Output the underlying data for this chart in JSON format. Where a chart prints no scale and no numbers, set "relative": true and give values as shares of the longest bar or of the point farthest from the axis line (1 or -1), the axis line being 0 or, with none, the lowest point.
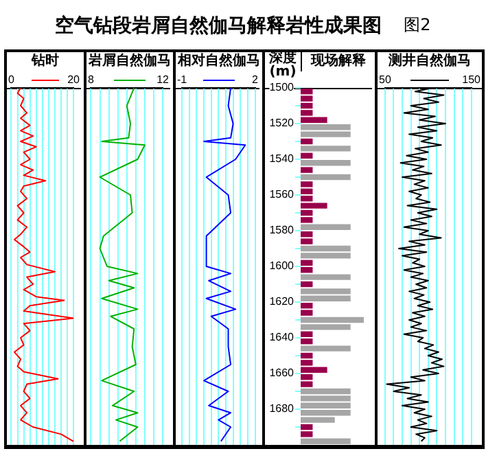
{
  "chart_data": [
    {
      "type": "line",
      "title": "钻时",
      "annotations": [
        "空气钻段岩屑自然伽马解释岩性成果图",
        "图2"
      ],
      "xlim": [
        0,
        20
      ],
      "xticks": [
        0,
        {
          "value": 2,
          "label": null
        },
        {
          "value": 4,
          "label": null
        },
        {
          "value": 6,
          "label": null
        },
        {
          "value": 8,
          "label": null
        },
        {
          "value": 10,
          "label": null
        },
        {
          "value": 12,
          "label": null
        },
        {
          "value": 14,
          "label": null
        },
        {
          "value": 16,
          "label": null
        },
        {
          "value": 18,
          "label": null
        },
        20
      ],
      "ylim": [
        1700,
        1500
      ],
      "tick_labels": "x",
      "grid": "x",
      "series": [
        {
          "color": "#ff0000",
          "x": [
            3,
            2,
            4,
            3,
            5,
            3,
            6,
            3,
            7,
            3,
            8,
            4,
            6,
            3,
            7,
            4,
            11,
            4,
            3,
            5,
            2,
            4,
            2,
            5,
            3,
            1,
            4,
            6,
            3,
            5,
            14,
            5,
            7,
            4,
            8,
            17,
            6,
            4,
            20,
            4,
            6,
            3,
            4,
            1,
            3,
            2,
            4,
            15,
            5,
            4,
            6,
            3,
            5,
            3,
            7,
            16,
            20
          ],
          "values": [
            1500,
            1503,
            1506,
            1510,
            1514,
            1517,
            1521,
            1524,
            1527,
            1530,
            1533,
            1536,
            1540,
            1543,
            1546,
            1549,
            1552,
            1555,
            1558,
            1562,
            1566,
            1570,
            1574,
            1578,
            1582,
            1585,
            1589,
            1592,
            1595,
            1599,
            1603,
            1606,
            1610,
            1613,
            1617,
            1619,
            1622,
            1625,
            1629,
            1632,
            1636,
            1640,
            1644,
            1648,
            1652,
            1656,
            1659,
            1663,
            1666,
            1670,
            1674,
            1678,
            1682,
            1686,
            1690,
            1694,
            1698
          ]
        }
      ]
    },
    {
      "type": "line",
      "title": "岩屑自然伽马",
      "xlim": [
        8,
        12
      ],
      "xticks": [
        8,
        {
          "value": 8.5,
          "label": null
        },
        {
          "value": 9,
          "label": null
        },
        {
          "value": 9.5,
          "label": null
        },
        {
          "value": 10,
          "label": null
        },
        {
          "value": 10.5,
          "label": null
        },
        {
          "value": 11,
          "label": null
        },
        {
          "value": 11.5,
          "label": null
        },
        12
      ],
      "ylim": [
        1700,
        1500
      ],
      "tick_labels": "x",
      "grid": "x",
      "series": [
        {
          "color": "#00b000",
          "x": [
            10.4,
            10,
            10.2,
            10.1,
            8.6,
            11,
            10.6,
            8.5,
            10.2,
            10.3,
            8.7,
            8.5,
            8.9,
            10.6,
            9,
            10.4,
            8.6,
            10.6,
            9.1,
            10.4,
            10.3,
            10.5,
            8.6,
            10.4,
            9.2,
            10.6,
            9.4,
            10.6,
            9.6
          ],
          "values": [
            1500,
            1510,
            1520,
            1528,
            1530,
            1532,
            1540,
            1550,
            1560,
            1570,
            1583,
            1590,
            1600,
            1604,
            1608,
            1612,
            1618,
            1624,
            1628,
            1635,
            1645,
            1655,
            1664,
            1670,
            1678,
            1682,
            1686,
            1690,
            1698
          ]
        }
      ]
    },
    {
      "type": "line",
      "title": "相对自然伽马",
      "xlim": [
        -1,
        2
      ],
      "xticks": [
        -1,
        {
          "value": -0.7,
          "label": null
        },
        {
          "value": -0.4,
          "label": null
        },
        {
          "value": -0.1,
          "label": null
        },
        {
          "value": 0.2,
          "label": null
        },
        {
          "value": 0.5,
          "label": null
        },
        {
          "value": 0.8,
          "label": null
        },
        {
          "value": 1.1,
          "label": null
        },
        {
          "value": 1.4,
          "label": null
        },
        {
          "value": 1.7,
          "label": null
        },
        2
      ],
      "ylim": [
        1700,
        1500
      ],
      "tick_labels": "x",
      "grid": "x",
      "series": [
        {
          "color": "#0000ff",
          "x": [
            1,
            0.9,
            1.1,
            1,
            -0.1,
            1.6,
            1.2,
            0,
            0.9,
            1,
            0,
            0,
            1,
            0.1,
            1,
            0,
            1.2,
            0.2,
            0.9,
            0.9,
            1,
            -0.1,
            0.9,
            0.1,
            1,
            0.5,
            1,
            0.6
          ],
          "values": [
            1500,
            1510,
            1520,
            1528,
            1530,
            1532,
            1540,
            1550,
            1560,
            1570,
            1583,
            1600,
            1604,
            1608,
            1614,
            1618,
            1624,
            1628,
            1635,
            1645,
            1655,
            1664,
            1670,
            1678,
            1682,
            1686,
            1690,
            1698
          ]
        }
      ]
    },
    {
      "type": "bar",
      "orientation": "horizontal",
      "relative": true,
      "title": "现场解释",
      "ylabel": "深度(m)",
      "ylim": [
        1700,
        1500
      ],
      "yticks": [
        1500,
        {
          "value": 1510,
          "label": null
        },
        1520,
        {
          "value": 1530,
          "label": null
        },
        1540,
        {
          "value": 1550,
          "label": null
        },
        1560,
        {
          "value": 1570,
          "label": null
        },
        1580,
        {
          "value": 1590,
          "label": null
        },
        1600,
        {
          "value": 1610,
          "label": null
        },
        1620,
        {
          "value": 1630,
          "label": null
        },
        1640,
        {
          "value": 1650,
          "label": null
        },
        1660,
        {
          "value": 1670,
          "label": null
        },
        1680,
        {
          "value": 1690,
          "label": null
        }
      ],
      "tick_labels": "y",
      "x": [
        1502,
        1506,
        1510,
        1514,
        1518,
        1522,
        1526,
        1530,
        1534,
        1538,
        1542,
        1546,
        1550,
        1554,
        1558,
        1562,
        1566,
        1570,
        1574,
        1578,
        1582,
        1586,
        1590,
        1594,
        1598,
        1602,
        1606,
        1610,
        1614,
        1618,
        1622,
        1626,
        1630,
        1634,
        1638,
        1642,
        1646,
        1650,
        1654,
        1658,
        1662,
        1666,
        1670,
        1674,
        1678,
        1682,
        1686,
        1690,
        1694,
        1698
      ],
      "values": [
        0.19,
        0.19,
        0.19,
        0.19,
        0.42,
        0.79,
        0.79,
        0.19,
        0.79,
        0.19,
        0.79,
        0.19,
        0.79,
        0.19,
        0.19,
        0.19,
        0.42,
        0.19,
        0.19,
        0.79,
        0.19,
        0.19,
        0.79,
        0.79,
        0.19,
        0.19,
        0.79,
        0.19,
        0.79,
        0.79,
        0.19,
        0.19,
        1,
        0.79,
        0.19,
        0.19,
        0.79,
        0.19,
        0.19,
        0.42,
        0.19,
        0.19,
        0.79,
        0.79,
        0.79,
        0.79,
        0.54,
        0.19,
        0.19,
        0.79
      ],
      "colors": [
        "#99004c",
        "#99004c",
        "#99004c",
        "#99004c",
        "#99004c",
        "#a6a6a6",
        "#a6a6a6",
        "#99004c",
        "#a6a6a6",
        "#99004c",
        "#a6a6a6",
        "#99004c",
        "#a6a6a6",
        "#99004c",
        "#99004c",
        "#99004c",
        "#99004c",
        "#99004c",
        "#99004c",
        "#a6a6a6",
        "#99004c",
        "#99004c",
        "#a6a6a6",
        "#a6a6a6",
        "#99004c",
        "#99004c",
        "#a6a6a6",
        "#99004c",
        "#a6a6a6",
        "#a6a6a6",
        "#99004c",
        "#99004c",
        "#a6a6a6",
        "#a6a6a6",
        "#99004c",
        "#99004c",
        "#a6a6a6",
        "#99004c",
        "#99004c",
        "#99004c",
        "#99004c",
        "#99004c",
        "#a6a6a6",
        "#a6a6a6",
        "#a6a6a6",
        "#a6a6a6",
        "#a6a6a6",
        "#99004c",
        "#99004c",
        "#a6a6a6"
      ]
    },
    {
      "type": "line",
      "title": "测井自然伽马",
      "xlim": [
        50,
        150
      ],
      "xticks": [
        50,
        {
          "value": 60,
          "label": null
        },
        {
          "value": 70,
          "label": null
        },
        {
          "value": 80,
          "label": null
        },
        {
          "value": 90,
          "label": null
        },
        {
          "value": 100,
          "label": null
        },
        {
          "value": 110,
          "label": null
        },
        {
          "value": 120,
          "label": null
        },
        {
          "value": 130,
          "label": null
        },
        {
          "value": 140,
          "label": null
        },
        150
      ],
      "ylim": [
        1700,
        1500
      ],
      "tick_labels": "x",
      "grid": "x",
      "series": [
        {
          "color": "#000000",
          "x": [
            105,
            85,
            118,
            95,
            112,
            80,
            100,
            72,
            108,
            90,
            120,
            88,
            110,
            78,
            105,
            92,
            115,
            85,
            100,
            75,
            98,
            68,
            95,
            82,
            104,
            70,
            96,
            84,
            100,
            78,
            92,
            86,
            102,
            76,
            110,
            88,
            104,
            80,
            98,
            72,
            100,
            90,
            115,
            78,
            96,
            66,
            98,
            70,
            90,
            82,
            96,
            72,
            94,
            80,
            100,
            86,
            98,
            78,
            95,
            84,
            102,
            88,
            105,
            82,
            96,
            78,
            92,
            80,
            98,
            72,
            94,
            88,
            106,
            96,
            112,
            100,
            116,
            104,
            118,
            94,
            112,
            80,
            96,
            52,
            78,
            60,
            92,
            76,
            100,
            70,
            96,
            84,
            104,
            88,
            98,
            80,
            110,
            86,
            96,
            92
          ],
          "values": [
            1500,
            1502,
            1504,
            1506,
            1508,
            1510,
            1512,
            1514,
            1516,
            1518,
            1520,
            1522,
            1524,
            1526,
            1528,
            1530,
            1532,
            1534,
            1536,
            1538,
            1540,
            1542,
            1544,
            1546,
            1548,
            1550,
            1552,
            1554,
            1556,
            1558,
            1560,
            1562,
            1564,
            1566,
            1568,
            1570,
            1572,
            1574,
            1576,
            1578,
            1580,
            1582,
            1584,
            1586,
            1588,
            1590,
            1592,
            1594,
            1596,
            1598,
            1600,
            1602,
            1604,
            1606,
            1608,
            1610,
            1612,
            1614,
            1616,
            1618,
            1620,
            1622,
            1624,
            1626,
            1628,
            1630,
            1632,
            1634,
            1636,
            1638,
            1640,
            1642,
            1644,
            1646,
            1648,
            1650,
            1652,
            1654,
            1656,
            1658,
            1660,
            1662,
            1664,
            1666,
            1668,
            1670,
            1672,
            1674,
            1676,
            1678,
            1680,
            1682,
            1684,
            1686,
            1688,
            1690,
            1692,
            1694,
            1696,
            1698
          ]
        }
      ]
    }
  ]
}
